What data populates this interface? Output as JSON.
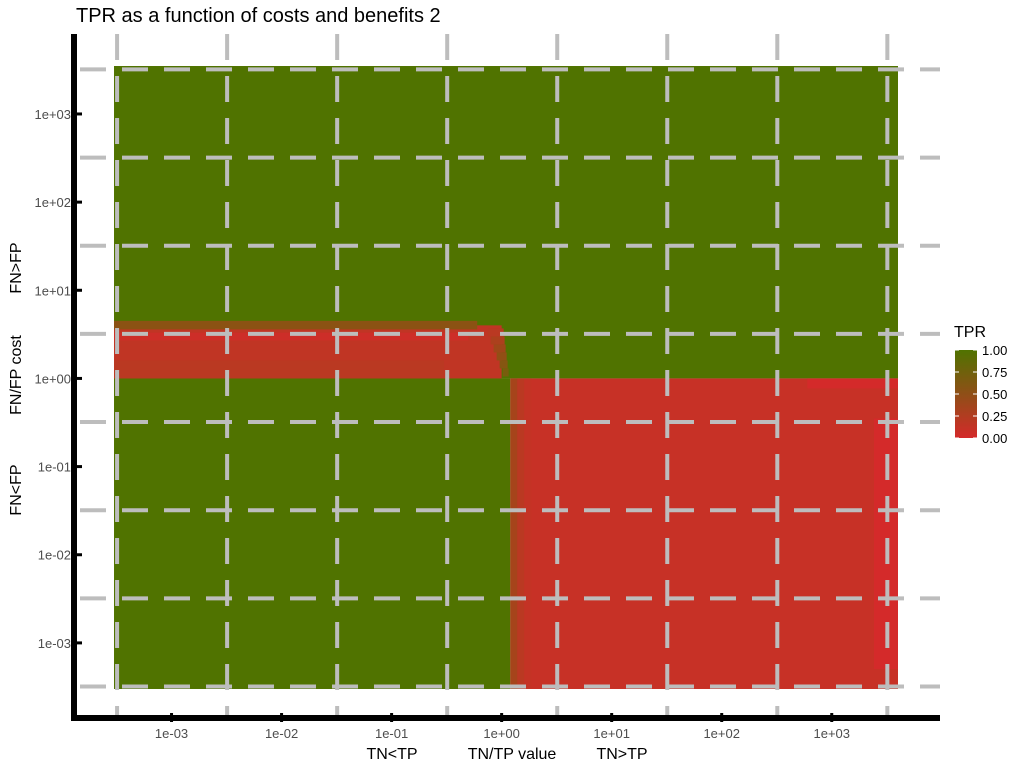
{
  "chart_data": {
    "type": "heatmap",
    "title": "TPR as a function of costs and benefits 2",
    "x_scale": "log10",
    "y_scale": "log10",
    "x_range": [
      0.0003,
      4000
    ],
    "y_range": [
      0.0003,
      3500
    ],
    "xlabel": {
      "left": "TN<TP",
      "center": "TN/TP value",
      "right": "TN>TP"
    },
    "ylabel": {
      "top": "FN>FP",
      "center": "FN/FP cost",
      "bottom": "FN<FP"
    },
    "x_ticks": [
      {
        "value": 0.001,
        "label": "1e-03"
      },
      {
        "value": 0.01,
        "label": "1e-02"
      },
      {
        "value": 0.1,
        "label": "1e-01"
      },
      {
        "value": 1,
        "label": "1e+00"
      },
      {
        "value": 10,
        "label": "1e+01"
      },
      {
        "value": 100,
        "label": "1e+02"
      },
      {
        "value": 1000,
        "label": "1e+03"
      }
    ],
    "y_ticks": [
      {
        "value": 0.001,
        "label": "1e-03"
      },
      {
        "value": 0.01,
        "label": "1e-02"
      },
      {
        "value": 0.1,
        "label": "1e-01"
      },
      {
        "value": 1,
        "label": "1e+00"
      },
      {
        "value": 10,
        "label": "1e+01"
      },
      {
        "value": 100,
        "label": "1e+02"
      },
      {
        "value": 1000,
        "label": "1e+03"
      }
    ],
    "regions": [
      {
        "name": "top",
        "x": [
          0.0003,
          4000
        ],
        "y": [
          1,
          3500
        ],
        "tpr": 1.0
      },
      {
        "name": "bottom-left",
        "x": [
          0.0003,
          1.2
        ],
        "y": [
          0.0003,
          1
        ],
        "tpr": 1.0
      },
      {
        "name": "bottom-right",
        "x": [
          1.2,
          4000
        ],
        "y": [
          0.0003,
          1
        ],
        "tpr": 0.1
      },
      {
        "name": "left-band",
        "x": [
          0.0003,
          1.0
        ],
        "y": [
          1,
          4
        ],
        "tpr": 0.15
      }
    ],
    "legend": {
      "title": "TPR",
      "position": "right",
      "low_color": "#d42a2a",
      "high_color": "#507300",
      "ticks": [
        {
          "value": 1.0,
          "label": "1.00"
        },
        {
          "value": 0.75,
          "label": "0.75"
        },
        {
          "value": 0.5,
          "label": "0.50"
        },
        {
          "value": 0.25,
          "label": "0.25"
        },
        {
          "value": 0.0,
          "label": "0.00"
        }
      ]
    },
    "grid": "dashed"
  }
}
